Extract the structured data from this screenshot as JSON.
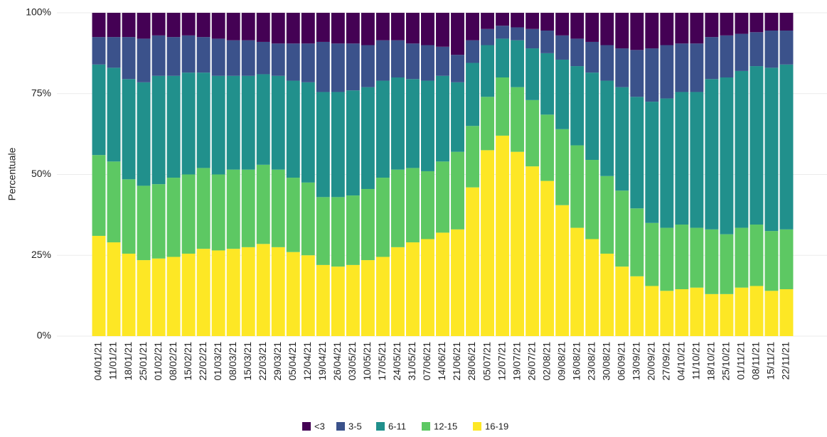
{
  "chart_data": {
    "type": "stacked_bar_percent",
    "y_label": "Percentuale",
    "categories": [
      "04/01/21",
      "11/01/21",
      "18/01/21",
      "25/01/21",
      "01/02/21",
      "08/02/21",
      "15/02/21",
      "22/02/21",
      "01/03/21",
      "08/03/21",
      "15/03/21",
      "22/03/21",
      "29/03/21",
      "05/04/21",
      "12/04/21",
      "19/04/21",
      "26/04/21",
      "03/05/21",
      "10/05/21",
      "17/05/21",
      "24/05/21",
      "31/05/21",
      "07/06/21",
      "14/06/21",
      "21/06/21",
      "28/06/21",
      "05/07/21",
      "12/07/21",
      "19/07/21",
      "26/07/21",
      "02/08/21",
      "09/08/21",
      "16/08/21",
      "23/08/21",
      "30/08/21",
      "06/09/21",
      "13/09/21",
      "20/09/21",
      "27/09/21",
      "04/10/21",
      "11/10/21",
      "18/10/21",
      "25/10/21",
      "01/11/21",
      "08/11/21",
      "15/11/21",
      "22/11/21"
    ],
    "series": [
      {
        "name": "<3",
        "color": "#440154",
        "values": [
          7.5,
          7.5,
          7.5,
          8,
          7,
          7.5,
          7,
          7.5,
          8,
          8.5,
          8.5,
          9,
          9.5,
          9.5,
          9.5,
          9,
          9.5,
          9.5,
          10,
          8.5,
          8.5,
          9.5,
          10,
          10.5,
          13,
          8.5,
          5,
          4,
          4.5,
          5,
          5.5,
          7,
          8,
          9,
          10,
          11,
          11.5,
          11,
          10,
          9.5,
          9.5,
          7.5,
          7,
          6.5,
          6,
          5.5,
          5.5
        ]
      },
      {
        "name": "3-5",
        "color": "#3b528b",
        "values": [
          8.5,
          9.5,
          13,
          13.5,
          12.5,
          12,
          11.5,
          11,
          11.5,
          11,
          11,
          10,
          10,
          11.5,
          12,
          15.5,
          15,
          14.5,
          13,
          12.5,
          11.5,
          11,
          11,
          9,
          8.5,
          7,
          5,
          4,
          4,
          6,
          7,
          7.5,
          8.5,
          9.5,
          11,
          12,
          14.5,
          16.5,
          16.5,
          15,
          15,
          13,
          13,
          11.5,
          10.5,
          11.5,
          10.5
        ]
      },
      {
        "name": "6-11",
        "color": "#21908c",
        "values": [
          28,
          29,
          31,
          32,
          33.5,
          31.5,
          31.5,
          29.5,
          30.5,
          29,
          29,
          28,
          29,
          30,
          31,
          32.5,
          32.5,
          32.5,
          31.5,
          30,
          28.5,
          27.5,
          28,
          26.5,
          21.5,
          19.5,
          16,
          12,
          14.5,
          16,
          19,
          21.5,
          24.5,
          27,
          29.5,
          32,
          34.5,
          37.5,
          40,
          41,
          42,
          46.5,
          48.5,
          48.5,
          49,
          50.5,
          51
        ]
      },
      {
        "name": "12-15",
        "color": "#5dc863",
        "values": [
          25,
          25,
          23,
          23,
          23,
          24.5,
          24.5,
          25,
          23.5,
          24.5,
          24,
          24.5,
          24,
          23,
          22.5,
          21,
          21.5,
          21.5,
          22,
          24.5,
          24,
          23,
          21,
          22,
          24,
          19,
          16.5,
          18,
          20,
          20.5,
          20.5,
          23.5,
          25.5,
          24.5,
          24,
          23.5,
          21,
          19.5,
          19.5,
          20,
          18.5,
          20,
          18.5,
          18.5,
          19,
          18.5,
          18.5
        ]
      },
      {
        "name": "16-19",
        "color": "#fde725",
        "values": [
          31,
          29,
          25.5,
          23.5,
          24,
          24.5,
          25.5,
          27,
          26.5,
          27,
          27.5,
          28.5,
          27.5,
          26,
          25,
          22,
          21.5,
          22,
          23.5,
          24.5,
          27.5,
          29,
          30,
          32,
          33,
          46,
          57.5,
          62,
          57,
          52.5,
          48,
          40.5,
          33.5,
          30,
          25.5,
          21.5,
          18.5,
          15.5,
          14,
          14.5,
          15,
          13,
          13,
          15,
          15.5,
          14,
          14.5
        ]
      }
    ],
    "ylim": [
      0,
      100
    ],
    "yticks": [
      {
        "value": 0,
        "label": "0%"
      },
      {
        "value": 25,
        "label": "25%"
      },
      {
        "value": 50,
        "label": "50%"
      },
      {
        "value": 75,
        "label": "75%"
      },
      {
        "value": 100,
        "label": "100%"
      }
    ],
    "grid": true,
    "legend": "bottom"
  }
}
